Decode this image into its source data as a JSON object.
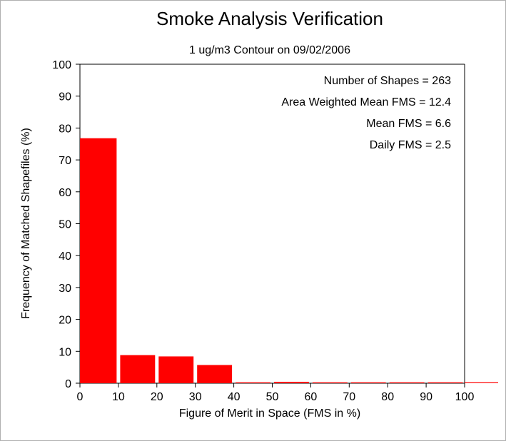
{
  "chart_data": {
    "type": "bar",
    "title": "Smoke Analysis Verification",
    "subtitle": "1 ug/m3 Contour on 09/02/2006",
    "xlabel": "Figure of Merit in Space (FMS in %)",
    "ylabel": "Frequency of Matched Shapefiles (%)",
    "xlim": [
      0,
      100
    ],
    "ylim": [
      0,
      100
    ],
    "xticks": [
      0,
      10,
      20,
      30,
      40,
      50,
      60,
      70,
      80,
      90,
      100
    ],
    "yticks": [
      0,
      10,
      20,
      30,
      40,
      50,
      60,
      70,
      80,
      90,
      100
    ],
    "bin_edges": [
      0,
      10,
      20,
      30,
      40,
      50,
      60,
      70,
      80,
      90,
      100
    ],
    "values": [
      76.8,
      8.8,
      8.4,
      5.7,
      0,
      0.4,
      0,
      0,
      0,
      0
    ],
    "bar_color": "#ff0000",
    "grid": false,
    "annotations": [
      "Number of Shapes = 263",
      "Area Weighted Mean FMS = 12.4",
      "Mean FMS = 6.6",
      "Daily FMS = 2.5"
    ]
  }
}
